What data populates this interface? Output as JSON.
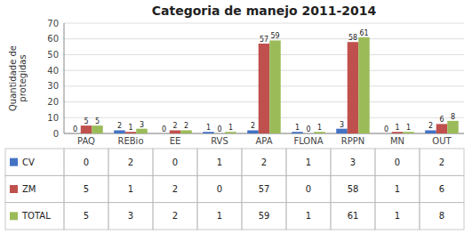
{
  "chart_data": {
    "type": "bar",
    "title": "Categoria de manejo 2011-2014",
    "y_label": "Quantidade de\nprotegidas",
    "categories": [
      "PAQ",
      "REBio",
      "EE",
      "RVS",
      "APA",
      "FLONA",
      "RPPN",
      "MN",
      "OUT"
    ],
    "series": [
      {
        "name": "CV",
        "color": "#4472C4",
        "values": [
          0,
          2,
          0,
          1,
          2,
          1,
          3,
          0,
          2
        ]
      },
      {
        "name": "ZM",
        "color": "#C0504D",
        "values": [
          5,
          1,
          2,
          0,
          57,
          0,
          58,
          1,
          6
        ]
      },
      {
        "name": "TOTAL",
        "color": "#9BBB59",
        "values": [
          5,
          3,
          2,
          1,
          59,
          1,
          61,
          1,
          8
        ]
      }
    ],
    "ylim": [
      0,
      70
    ],
    "yticks": [
      0,
      10,
      20,
      30,
      40,
      50,
      60,
      70
    ],
    "grid": true,
    "data_labels": true
  }
}
